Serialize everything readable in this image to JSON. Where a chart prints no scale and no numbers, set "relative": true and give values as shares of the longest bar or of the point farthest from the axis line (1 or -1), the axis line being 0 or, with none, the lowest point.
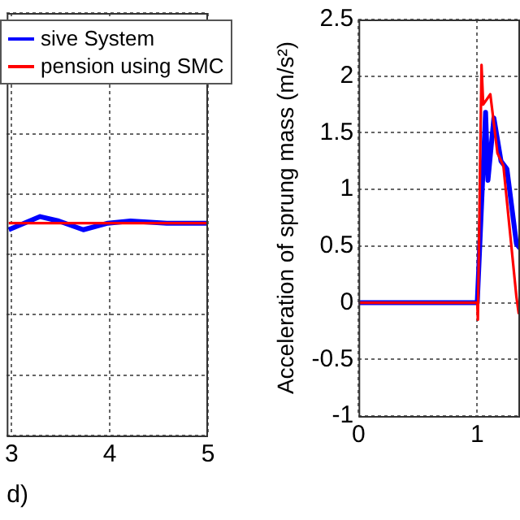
{
  "chart_data": [
    {
      "type": "line",
      "xlabel": "d)",
      "relative": true,
      "xlim": [
        2.95,
        5
      ],
      "xticks": [
        3,
        4,
        5
      ],
      "grid": true,
      "legend": "top left",
      "tick_labels": "x",
      "line_style": "solid",
      "marker": "none",
      "series": [
        {
          "name": "sive System",
          "color": "#0000ff",
          "x": [
            2.97,
            3.29,
            3.48,
            3.73,
            3.98,
            4.21,
            4.58,
            5
          ],
          "values": [
            0.94,
            1.0,
            0.98,
            0.94,
            0.97,
            0.98,
            0.97,
            0.97
          ]
        },
        {
          "name": "pension using SMC",
          "color": "#ff0000",
          "x": [
            2.97,
            5
          ],
          "values": [
            0.97,
            0.97
          ]
        }
      ]
    },
    {
      "type": "line",
      "ylabel": "Acceleration of sprung mass (m/s²)",
      "xlim": [
        0,
        1.36
      ],
      "xticks": [
        0,
        1
      ],
      "ylim": [
        -1,
        2.5
      ],
      "yticks": [
        -1,
        -0.5,
        0,
        0.5,
        1,
        1.5,
        2,
        2.5
      ],
      "grid": true,
      "legend": false,
      "line_style": "solid",
      "marker": "none",
      "series": [
        {
          "color": "#0000ff",
          "x": [
            0,
            1,
            1.07,
            1.09,
            1.14,
            1.2,
            1.25,
            1.33,
            1.36
          ],
          "values": [
            0,
            0,
            1.68,
            1.08,
            1.63,
            1.25,
            1.18,
            0.52,
            0.48
          ]
        },
        {
          "color": "#ff0000",
          "x": [
            0,
            1,
            1.005,
            1.036,
            1.05,
            1.11,
            1.17,
            1.22,
            1.33,
            1.35
          ],
          "values": [
            0,
            0,
            -0.15,
            2.1,
            1.75,
            1.84,
            1.32,
            1.21,
            0.05,
            -0.1
          ]
        }
      ]
    }
  ]
}
